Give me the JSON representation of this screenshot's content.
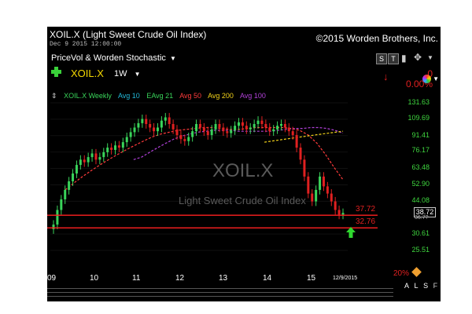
{
  "header": {
    "title": "XOIL.X (Light Sweet Crude Oil Index)",
    "copyright": "©2015 Worden Brothers, Inc.",
    "datetime": "Dec 9 2015 12:00:00"
  },
  "toolbar": {
    "study_name": "PriceVol & Worden Stochastic",
    "symbol": "XOIL.X",
    "timeframe": "1W",
    "buttons": [
      "S",
      "T"
    ],
    "change_value": "0",
    "change_percent": "0.00%"
  },
  "legend": {
    "series": [
      {
        "label": "XOIL.X Weekly",
        "color": "#39d45a"
      },
      {
        "label": "Avg 10",
        "color": "#22b8d8"
      },
      {
        "label": "EAvg 21",
        "color": "#39d45a"
      },
      {
        "label": "Avg 50",
        "color": "#ff3b3b"
      },
      {
        "label": "Avg 200",
        "color": "#f2d21a"
      },
      {
        "label": "Avg 100",
        "color": "#b040d8"
      }
    ]
  },
  "price_axis": [
    "131.63",
    "109.69",
    "91.41",
    "76.17",
    "63.48",
    "52.90",
    "44.08",
    "30.61",
    "25.51"
  ],
  "time_axis": [
    "09",
    "10",
    "11",
    "12",
    "13",
    "14",
    "15"
  ],
  "time_axis_date": "12/9/2015",
  "watermark": {
    "symbol": "XOIL.X",
    "name": "Light Sweet Crude Oil Index"
  },
  "levels": [
    {
      "value": "37.72",
      "color": "#ff2020"
    },
    {
      "value": "32.76",
      "color": "#ff2020"
    }
  ],
  "last_price": "38.72",
  "last_price_sub": "36.7?",
  "indicator_pct": "20%",
  "bottom_buttons": [
    "A",
    "L",
    "S",
    "F"
  ],
  "colors": {
    "background": "#000000",
    "up": "#39d45a",
    "down": "#e02020",
    "level": "#ff2020",
    "axis_text": "#3fd63f"
  },
  "icons": [
    "plus-icon",
    "down-arrow-icon",
    "color-wheel-icon",
    "pencil-icon",
    "green-up-arrow-icon"
  ],
  "chart_data": {
    "type": "candlestick",
    "ticker": "XOIL.X",
    "period": "weekly",
    "x_range": [
      "2009",
      "2015-12-09"
    ],
    "y_scale": "log",
    "ylim": [
      25.51,
      131.63
    ],
    "closes": [
      34,
      40,
      45,
      50,
      55,
      60,
      66,
      70,
      68,
      72,
      75,
      70,
      72,
      76,
      80,
      78,
      82,
      80,
      85,
      90,
      95,
      100,
      105,
      110,
      104,
      100,
      96,
      100,
      108,
      112,
      104,
      98,
      92,
      88,
      86,
      90,
      96,
      104,
      100,
      96,
      92,
      98,
      104,
      100,
      96,
      94,
      97,
      102,
      106,
      102,
      98,
      100,
      104,
      108,
      104,
      100,
      96,
      98,
      102,
      104,
      100,
      96,
      92,
      80,
      70,
      58,
      48,
      44,
      50,
      58,
      52,
      48,
      44,
      40,
      38,
      38.72
    ],
    "lines": {
      "Avg 50": [
        50,
        54,
        58,
        62,
        66,
        70,
        74,
        78,
        82,
        86,
        90,
        93,
        95,
        97,
        98,
        99,
        100,
        100,
        99,
        98,
        98,
        99,
        100,
        100,
        100,
        100,
        99,
        97,
        92,
        84,
        74,
        64,
        56
      ],
      "Avg 100": [
        70,
        72,
        76,
        80,
        84,
        88,
        91,
        93,
        95,
        96,
        97,
        97,
        97,
        96,
        96,
        96,
        96,
        96,
        97,
        98,
        99,
        99,
        100,
        100,
        99,
        97,
        94
      ],
      "Avg 200": [
        85,
        86,
        87,
        88,
        89,
        90,
        91,
        92,
        93,
        94,
        95,
        96
      ]
    },
    "levels": [
      37.72,
      32.76
    ]
  }
}
